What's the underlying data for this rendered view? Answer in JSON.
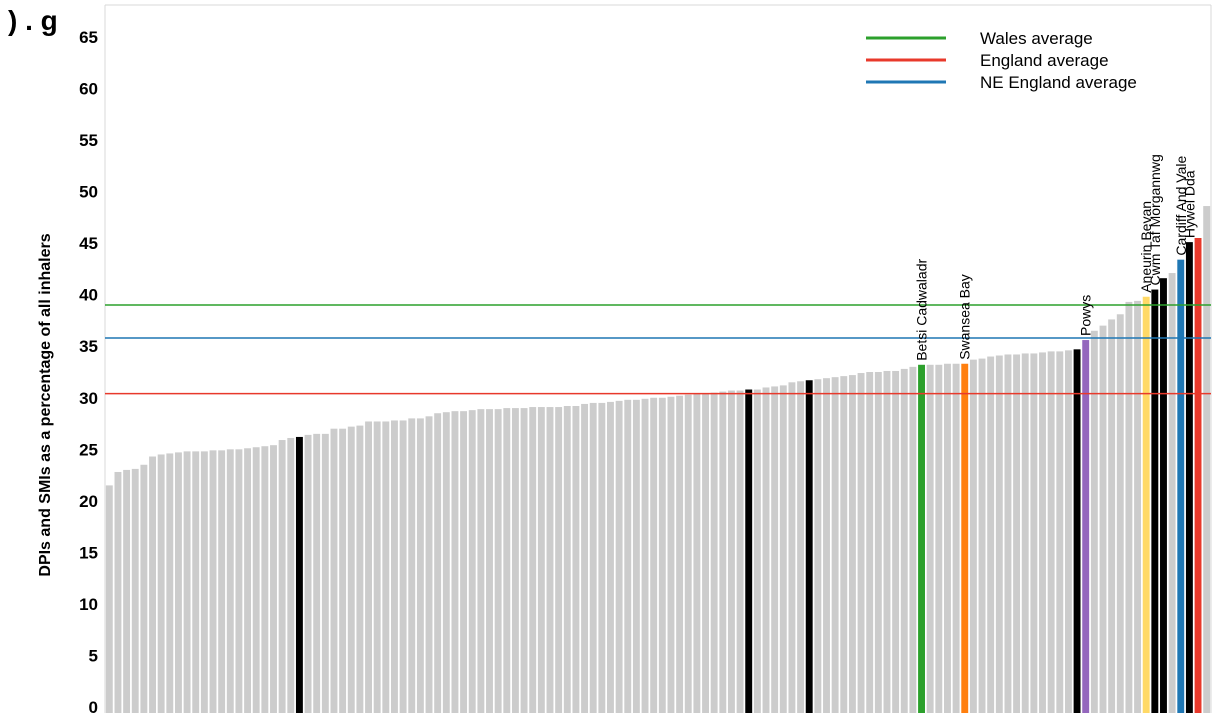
{
  "title_fragment": ") . g",
  "chart_data": {
    "type": "bar",
    "ylabel": "DPIs and SMIs as a percentage of all inhalers",
    "ylim": [
      0,
      66
    ],
    "yticks": [
      0,
      5,
      10,
      15,
      20,
      25,
      30,
      35,
      40,
      45,
      50,
      55,
      60,
      65
    ],
    "grid": false,
    "legend_position": "top-right",
    "bar_default_color": "#cccccc",
    "values": [
      21.5,
      22.8,
      23.0,
      23.1,
      23.5,
      24.3,
      24.5,
      24.6,
      24.7,
      24.8,
      24.8,
      24.8,
      24.9,
      24.9,
      25.0,
      25.0,
      25.1,
      25.2,
      25.3,
      25.4,
      25.9,
      26.1,
      26.2,
      26.4,
      26.5,
      26.5,
      27.0,
      27.0,
      27.2,
      27.3,
      27.7,
      27.7,
      27.7,
      27.8,
      27.8,
      28.0,
      28.0,
      28.2,
      28.5,
      28.6,
      28.7,
      28.7,
      28.8,
      28.9,
      28.9,
      28.9,
      29.0,
      29.0,
      29.0,
      29.1,
      29.1,
      29.1,
      29.1,
      29.2,
      29.2,
      29.4,
      29.5,
      29.5,
      29.6,
      29.7,
      29.8,
      29.8,
      29.9,
      30.0,
      30.0,
      30.1,
      30.2,
      30.3,
      30.4,
      30.4,
      30.5,
      30.6,
      30.7,
      30.7,
      30.8,
      30.8,
      31.0,
      31.1,
      31.2,
      31.5,
      31.6,
      31.7,
      31.8,
      31.9,
      32.0,
      32.1,
      32.2,
      32.4,
      32.5,
      32.5,
      32.6,
      32.6,
      32.8,
      33.0,
      33.2,
      33.2,
      33.2,
      33.3,
      33.3,
      33.3,
      33.7,
      33.8,
      34.0,
      34.1,
      34.2,
      34.2,
      34.3,
      34.3,
      34.4,
      34.5,
      34.5,
      34.6,
      34.7,
      35.6,
      36.5,
      37.0,
      37.6,
      38.1,
      39.3,
      39.4,
      39.8,
      40.5,
      41.6,
      42.1,
      43.4,
      45.1,
      45.5,
      48.6
    ],
    "highlights": [
      {
        "index": 22,
        "color": "#000000"
      },
      {
        "index": 74,
        "color": "#000000"
      },
      {
        "index": 81,
        "color": "#000000"
      },
      {
        "index": 94,
        "color": "#2ca02c",
        "label": "Betsi Cadwaladr"
      },
      {
        "index": 99,
        "color": "#ff7f0e",
        "label": "Swansea Bay"
      },
      {
        "index": 112,
        "color": "#000000"
      },
      {
        "index": 113,
        "color": "#9467bd",
        "label": "Powys"
      },
      {
        "index": 120,
        "color": "#ffd966",
        "label": "Aneurin Bevan"
      },
      {
        "index": 121,
        "color": "#000000",
        "label": "Cwm Taf Morgannwg"
      },
      {
        "index": 122,
        "color": "#000000"
      },
      {
        "index": 124,
        "color": "#1f77b4",
        "label": "Cardiff And Vale"
      },
      {
        "index": 125,
        "color": "#000000",
        "label": "Hywel Dda"
      },
      {
        "index": 126,
        "color": "#e8392b"
      }
    ],
    "reference_lines": [
      {
        "name": "Wales average",
        "value": 39.0,
        "color": "#2ca02c"
      },
      {
        "name": "England average",
        "value": 30.4,
        "color": "#e8392b"
      },
      {
        "name": "NE England average",
        "value": 35.8,
        "color": "#1f77b4"
      }
    ],
    "legend": [
      "Wales average",
      "England average",
      "NE England average"
    ]
  }
}
